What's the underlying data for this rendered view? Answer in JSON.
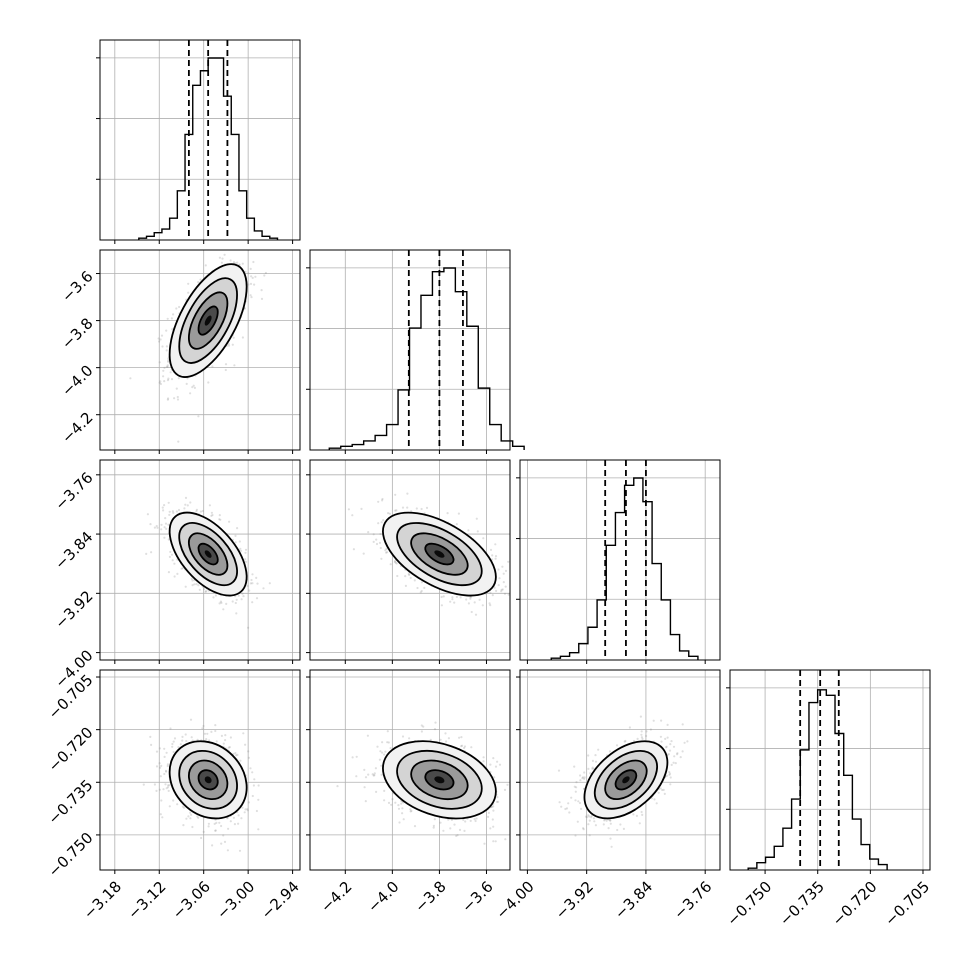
{
  "chart_data": {
    "type": "corner",
    "title": "",
    "grid": true,
    "n_params": 4,
    "params": [
      {
        "label": "",
        "range": [
          -3.2,
          -2.93
        ],
        "ticks": [
          -3.18,
          -3.12,
          -3.06,
          -3.0,
          -2.94
        ],
        "tick_labels": [
          "−3.18",
          "−3.12",
          "−3.06",
          "−3.00",
          "−2.94"
        ],
        "quantiles": [
          -3.08,
          -3.054,
          -3.028
        ],
        "hist_heights": [
          0.01,
          0.02,
          0.04,
          0.06,
          0.12,
          0.27,
          0.58,
          0.85,
          0.93,
          1.0,
          1.0,
          0.79,
          0.58,
          0.27,
          0.12,
          0.05,
          0.02,
          0.01
        ]
      },
      {
        "label": "",
        "range": [
          -4.35,
          -3.5
        ],
        "ticks": [
          -4.2,
          -4.0,
          -3.8,
          -3.6
        ],
        "tick_labels": [
          "−4.2",
          "−4.0",
          "−3.8",
          "−3.6"
        ],
        "quantiles": [
          -3.93,
          -3.8,
          -3.7
        ],
        "hist_heights": [
          0.01,
          0.02,
          0.03,
          0.05,
          0.08,
          0.14,
          0.33,
          0.67,
          0.85,
          0.98,
          1.0,
          0.87,
          0.68,
          0.34,
          0.14,
          0.05,
          0.02
        ]
      },
      {
        "label": "",
        "range": [
          -4.01,
          -3.74
        ],
        "ticks": [
          -4.0,
          -3.92,
          -3.84,
          -3.76
        ],
        "tick_labels": [
          "−4.00",
          "−3.92",
          "−3.84",
          "−3.76"
        ],
        "quantiles": [
          -3.895,
          -3.867,
          -3.84
        ],
        "hist_heights": [
          0.01,
          0.02,
          0.04,
          0.09,
          0.18,
          0.33,
          0.63,
          0.81,
          0.96,
          1.0,
          0.87,
          0.53,
          0.33,
          0.14,
          0.05,
          0.02
        ]
      },
      {
        "label": "",
        "range": [
          -0.76,
          -0.703
        ],
        "ticks": [
          -0.75,
          -0.735,
          -0.72,
          -0.705
        ],
        "tick_labels": [
          "−0.750",
          "−0.735",
          "−0.720",
          "−0.705"
        ],
        "ytick_labels": [
          "−0.705",
          "−0.720",
          "−0.735",
          "−0.750"
        ],
        "quantiles": [
          -0.74,
          -0.7343,
          -0.729
        ],
        "hist_heights": [
          0.01,
          0.04,
          0.07,
          0.13,
          0.23,
          0.39,
          0.66,
          0.92,
          0.99,
          0.96,
          0.75,
          0.52,
          0.28,
          0.14,
          0.06,
          0.03
        ]
      }
    ],
    "correlations": [
      {
        "row": 1,
        "col": 0,
        "r": 0.6
      },
      {
        "row": 2,
        "col": 0,
        "r": -0.55
      },
      {
        "row": 2,
        "col": 1,
        "r": -0.55
      },
      {
        "row": 3,
        "col": 0,
        "r": -0.2
      },
      {
        "row": 3,
        "col": 1,
        "r": -0.3
      },
      {
        "row": 3,
        "col": 2,
        "r": 0.45
      }
    ],
    "means": [
      -3.054,
      -3.8,
      -3.867,
      -0.7343
    ],
    "sigmas": [
      0.026,
      0.12,
      0.028,
      0.0055
    ],
    "colors": {
      "points": "#8c8c8c",
      "lines": "#000000",
      "grid": "#b0b0b0"
    }
  }
}
